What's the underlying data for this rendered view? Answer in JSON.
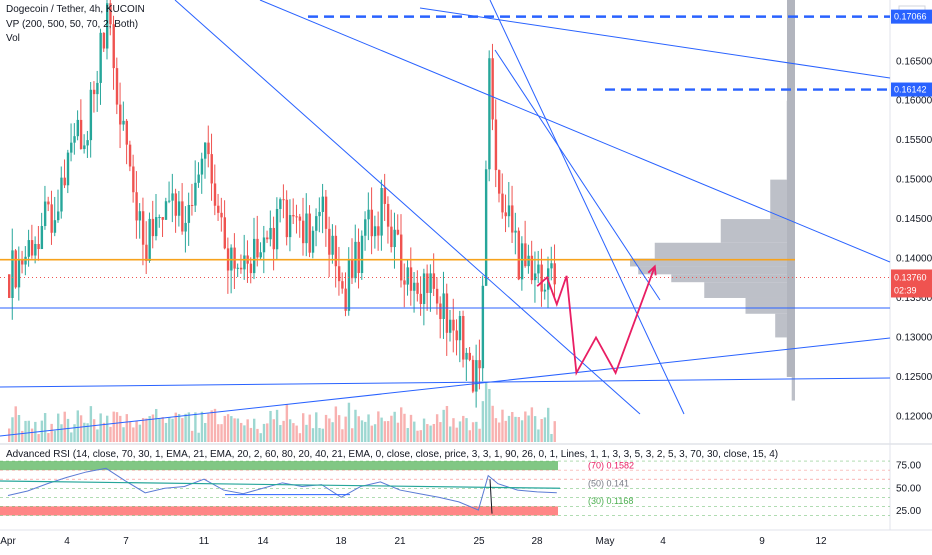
{
  "header": {
    "title": "Dogecoin / Tether, 4h, KUCOIN",
    "indicator_vp": "VP (200, 500, 50, 70, 2, Both)",
    "indicator_vol": "Vol",
    "rsi_label": "Advanced RSI (14, close, 70, 30, 1, EMA, 21, EMA, 20, 2, 60, 80, 20, 40, 21, EMA, 0, close, close, price, 3, 3, 1, 90, 26, 0, 1, Lines, 1, 1, 3, 3, 5, 3, 2, 5, 3, 70, 30, close, 15, 4)"
  },
  "colors": {
    "up": "#26a69a",
    "down": "#ef5350",
    "trendline": "#2962ff",
    "support": "#f7a21b",
    "projection": "#e91e63",
    "volume_profile": "#b2b5be",
    "rsi_overbought": "#4caf50",
    "rsi_oversold": "#ff5252"
  },
  "price_axis": {
    "currency": "USDT",
    "ticks": [
      "0.16500",
      "0.16000",
      "0.15500",
      "0.15000",
      "0.14500",
      "0.14000",
      "0.13500",
      "0.13000",
      "0.12500",
      "0.12000"
    ],
    "labels": [
      {
        "text": "0.17066",
        "kind": "level"
      },
      {
        "text": "0.16142",
        "kind": "level"
      },
      {
        "text": "0.13760",
        "kind": "last"
      },
      {
        "text": "02:39",
        "kind": "timer"
      }
    ]
  },
  "rsi_axis": {
    "ticks": [
      "75.00",
      "50.00",
      "25.00"
    ],
    "band_labels": [
      "(70) 0.1582",
      "(50) 0.141",
      "(30) 0.1168"
    ]
  },
  "time_axis": {
    "ticks": [
      "Apr",
      "4",
      "7",
      "11",
      "14",
      "18",
      "21",
      "25",
      "28",
      "May",
      "4",
      "9",
      "12"
    ]
  },
  "chart_data": {
    "type": "candlestick",
    "symbol": "Dogecoin / Tether",
    "interval": "4h",
    "exchange": "KUCOIN",
    "ylim": [
      0.117,
      0.1715
    ],
    "last_price": 0.1376,
    "price_points": [
      {
        "x": "Apr 1",
        "y": 0.138
      },
      {
        "x": "Apr 2",
        "y": 0.141
      },
      {
        "x": "Apr 3",
        "y": 0.145
      },
      {
        "x": "Apr 4",
        "y": 0.152
      },
      {
        "x": "Apr 5",
        "y": 0.158
      },
      {
        "x": "Apr 6",
        "y": 0.17
      },
      {
        "x": "Apr 7",
        "y": 0.152
      },
      {
        "x": "Apr 8",
        "y": 0.142
      },
      {
        "x": "Apr 9",
        "y": 0.147
      },
      {
        "x": "Apr 10",
        "y": 0.146
      },
      {
        "x": "Apr 11",
        "y": 0.155
      },
      {
        "x": "Apr 12",
        "y": 0.14
      },
      {
        "x": "Apr 13",
        "y": 0.138
      },
      {
        "x": "Apr 14",
        "y": 0.142
      },
      {
        "x": "Apr 15",
        "y": 0.146
      },
      {
        "x": "Apr 16",
        "y": 0.143
      },
      {
        "x": "Apr 17",
        "y": 0.145
      },
      {
        "x": "Apr 18",
        "y": 0.135
      },
      {
        "x": "Apr 19",
        "y": 0.142
      },
      {
        "x": "Apr 20",
        "y": 0.146
      },
      {
        "x": "Apr 21",
        "y": 0.14
      },
      {
        "x": "Apr 22",
        "y": 0.137
      },
      {
        "x": "Apr 23",
        "y": 0.134
      },
      {
        "x": "Apr 24",
        "y": 0.13
      },
      {
        "x": "Apr 25",
        "y": 0.124
      },
      {
        "x": "Apr 25.5",
        "y": 0.165
      },
      {
        "x": "Apr 26",
        "y": 0.148
      },
      {
        "x": "Apr 27",
        "y": 0.14
      },
      {
        "x": "Apr 28",
        "y": 0.139
      },
      {
        "x": "Apr 29",
        "y": 0.1376
      }
    ],
    "horizontal_levels": [
      {
        "price": 0.13985,
        "style": "solid",
        "color": "support"
      },
      {
        "price": 0.1376,
        "style": "dotted",
        "color": "down"
      },
      {
        "price": 0.16142,
        "style": "dashed",
        "color": "trendline"
      },
      {
        "price": 0.17066,
        "style": "dashed",
        "color": "trendline"
      }
    ],
    "volume_profile_ticks": [
      0.17,
      0.16,
      0.15,
      0.145,
      0.142,
      0.14,
      0.139,
      0.138,
      0.137,
      0.135,
      0.133,
      0.13,
      0.125
    ],
    "volume_profile_weights": [
      0.02,
      0.05,
      0.15,
      0.45,
      0.85,
      1.0,
      0.95,
      0.75,
      0.55,
      0.3,
      0.12,
      0.05,
      0.02
    ],
    "projection_path": [
      {
        "x": "Apr 28",
        "y": 0.1365
      },
      {
        "x": "Apr 28.5",
        "y": 0.1376
      },
      {
        "x": "Apr 29",
        "y": 0.1342
      },
      {
        "x": "Apr 29.5",
        "y": 0.1378
      },
      {
        "x": "Apr 30",
        "y": 0.1255
      },
      {
        "x": "May 1",
        "y": 0.13
      },
      {
        "x": "May 2",
        "y": 0.1255
      },
      {
        "x": "May 4",
        "y": 0.139
      }
    ],
    "rsi": {
      "ylim": [
        15,
        90
      ],
      "overbought": 70,
      "oversold": 30,
      "values": [
        42,
        47,
        55,
        62,
        68,
        72,
        58,
        45,
        50,
        52,
        60,
        48,
        44,
        50,
        56,
        52,
        54,
        40,
        52,
        57,
        48,
        44,
        40,
        35,
        26,
        64,
        55,
        48,
        46,
        45
      ]
    }
  }
}
